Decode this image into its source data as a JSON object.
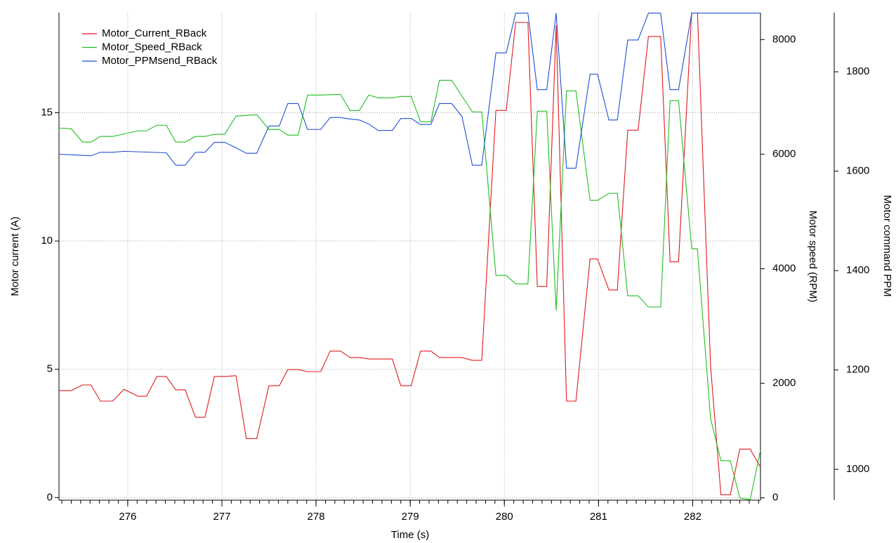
{
  "chart_data": {
    "type": "line",
    "x_label": "Time (s)",
    "y_label": "Motor current (A)",
    "y2_label": "Motor speed (RPM)",
    "y3_label": "Motor command PPM",
    "xlim": [
      275.27,
      282.72
    ],
    "xticks": [
      276,
      277,
      278,
      279,
      280,
      281,
      282
    ],
    "xminor": 0.1,
    "ylim": [
      -0.1,
      18.9
    ],
    "yticks": [
      0,
      5,
      10,
      15
    ],
    "y2lim": [
      -40,
      8470
    ],
    "y2ticks": [
      0,
      2000,
      4000,
      6000,
      8000
    ],
    "y3lim": [
      938,
      1919
    ],
    "y3ticks": [
      1000,
      1200,
      1400,
      1600,
      1800
    ],
    "grid": true,
    "legend": "upper left",
    "series": [
      {
        "name": "Motor_Current_RBack",
        "color": "#e0191d",
        "axis": "y",
        "x": [
          275.27,
          275.4,
          275.52,
          275.61,
          275.71,
          275.84,
          275.96,
          276.11,
          276.2,
          276.31,
          276.41,
          276.51,
          276.61,
          276.72,
          276.82,
          276.92,
          277.03,
          277.15,
          277.26,
          277.37,
          277.5,
          277.61,
          277.7,
          277.81,
          277.91,
          278.05,
          278.15,
          278.26,
          278.36,
          278.46,
          278.56,
          278.81,
          278.9,
          279.01,
          279.11,
          279.22,
          279.31,
          279.55,
          279.66,
          279.76,
          279.91,
          280.02,
          280.12,
          280.25,
          280.35,
          280.45,
          280.55,
          280.66,
          280.76,
          280.91,
          280.99,
          281.11,
          281.2,
          281.31,
          281.42,
          281.53,
          281.66,
          281.76,
          281.85,
          281.99,
          282.05,
          282.19,
          282.3,
          282.4,
          282.5,
          282.61,
          282.72
        ],
        "values": [
          4.17,
          4.17,
          4.39,
          4.39,
          3.76,
          3.76,
          4.22,
          3.95,
          3.95,
          4.72,
          4.72,
          4.2,
          4.2,
          3.13,
          3.13,
          4.72,
          4.72,
          4.75,
          2.3,
          2.3,
          4.36,
          4.36,
          4.99,
          4.99,
          4.91,
          4.91,
          5.71,
          5.71,
          5.46,
          5.46,
          5.4,
          5.4,
          4.36,
          4.36,
          5.71,
          5.71,
          5.46,
          5.46,
          5.35,
          5.35,
          15.09,
          15.09,
          18.52,
          18.52,
          8.23,
          8.23,
          18.41,
          3.76,
          3.76,
          9.3,
          9.3,
          8.09,
          8.09,
          14.32,
          14.32,
          17.97,
          17.97,
          9.19,
          9.19,
          18.98,
          18.98,
          5.13,
          0.11,
          0.11,
          1.89,
          1.89,
          1.18
        ]
      },
      {
        "name": "Motor_Speed_RBack",
        "color": "#1fbf1f",
        "axis": "y2",
        "x": [
          275.27,
          275.4,
          275.52,
          275.61,
          275.71,
          275.84,
          276.11,
          276.2,
          276.31,
          276.41,
          276.51,
          276.61,
          276.72,
          276.82,
          276.92,
          277.03,
          277.15,
          277.37,
          277.5,
          277.61,
          277.7,
          277.81,
          277.91,
          278.05,
          278.26,
          278.36,
          278.46,
          278.56,
          278.66,
          278.81,
          278.9,
          279.01,
          279.11,
          279.22,
          279.31,
          279.44,
          279.66,
          279.76,
          279.91,
          280.02,
          280.12,
          280.25,
          280.35,
          280.45,
          280.55,
          280.66,
          280.76,
          280.91,
          280.99,
          281.11,
          281.2,
          281.31,
          281.42,
          281.53,
          281.66,
          281.76,
          281.85,
          281.99,
          282.05,
          282.19,
          282.3,
          282.4,
          282.5,
          282.61,
          282.72
        ],
        "values": [
          6456,
          6444,
          6211,
          6211,
          6309,
          6309,
          6407,
          6407,
          6505,
          6505,
          6211,
          6211,
          6309,
          6309,
          6346,
          6346,
          6664,
          6689,
          6431,
          6431,
          6333,
          6333,
          7032,
          7032,
          7044,
          6762,
          6762,
          7032,
          6983,
          6983,
          7007,
          7007,
          6566,
          6566,
          7289,
          7289,
          6738,
          6738,
          3883,
          3883,
          3736,
          3736,
          6750,
          6750,
          3271,
          7105,
          7105,
          5194,
          5194,
          5317,
          5317,
          3528,
          3528,
          3332,
          3332,
          6934,
          6934,
          4349,
          4349,
          1384,
          649,
          649,
          0,
          -30,
          833
        ]
      },
      {
        "name": "Motor_PPMsend_RBack",
        "color": "#1f4fd6",
        "axis": "y3",
        "x": [
          275.27,
          275.4,
          275.61,
          275.71,
          275.84,
          275.96,
          276.41,
          276.51,
          276.61,
          276.72,
          276.82,
          276.92,
          277.03,
          277.15,
          277.26,
          277.37,
          277.5,
          277.61,
          277.7,
          277.81,
          277.91,
          278.05,
          278.15,
          278.26,
          278.36,
          278.46,
          278.56,
          278.66,
          278.81,
          278.9,
          279.01,
          279.11,
          279.22,
          279.31,
          279.44,
          279.55,
          279.66,
          279.76,
          279.91,
          280.02,
          280.12,
          280.25,
          280.35,
          280.45,
          280.55,
          280.66,
          280.76,
          280.91,
          280.99,
          281.11,
          281.2,
          281.31,
          281.42,
          281.53,
          281.66,
          281.76,
          281.85,
          281.99,
          282.72
        ],
        "values": [
          1634,
          1633,
          1631,
          1638,
          1638,
          1640,
          1637,
          1612,
          1612,
          1638,
          1638,
          1658,
          1658,
          1647,
          1636,
          1636,
          1691,
          1691,
          1736,
          1736,
          1684,
          1684,
          1708,
          1708,
          1705,
          1703,
          1695,
          1682,
          1682,
          1706,
          1706,
          1694,
          1694,
          1736,
          1736,
          1710,
          1612,
          1612,
          1838,
          1838,
          1918,
          1918,
          1764,
          1764,
          1918,
          1606,
          1606,
          1795,
          1795,
          1703,
          1703,
          1864,
          1864,
          1918,
          1918,
          1764,
          1764,
          1918,
          1918
        ]
      }
    ]
  }
}
